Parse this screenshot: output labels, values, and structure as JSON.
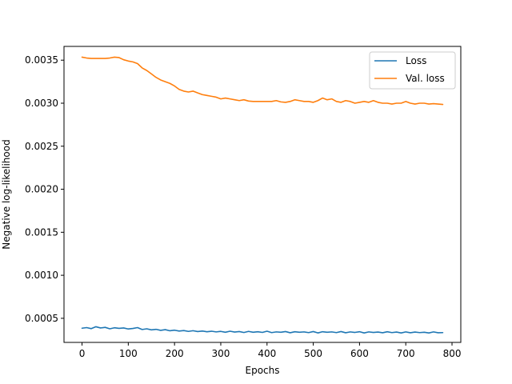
{
  "chart_data": {
    "type": "line",
    "title": "",
    "xlabel": "Epochs",
    "ylabel": "Negative log-likelihood",
    "xlim": [
      -39,
      819
    ],
    "ylim": [
      0.00022,
      0.00366
    ],
    "xticks": [
      0,
      100,
      200,
      300,
      400,
      500,
      600,
      700,
      800
    ],
    "xtick_labels": [
      "0",
      "100",
      "200",
      "300",
      "400",
      "500",
      "600",
      "700",
      "800"
    ],
    "yticks": [
      0.0005,
      0.001,
      0.0015,
      0.002,
      0.0025,
      0.003,
      0.0035
    ],
    "ytick_labels": [
      "0.0005",
      "0.0010",
      "0.0015",
      "0.0020",
      "0.0025",
      "0.0030",
      "0.0035"
    ],
    "grid": false,
    "legend_position": "top-right",
    "series": [
      {
        "name": "Loss",
        "color": "#1f77b4",
        "x": [
          0,
          10,
          20,
          30,
          40,
          50,
          60,
          70,
          80,
          90,
          100,
          110,
          120,
          130,
          140,
          150,
          160,
          170,
          180,
          190,
          200,
          210,
          220,
          230,
          240,
          250,
          260,
          270,
          280,
          290,
          300,
          310,
          320,
          330,
          340,
          350,
          360,
          370,
          380,
          390,
          400,
          410,
          420,
          430,
          440,
          450,
          460,
          470,
          480,
          490,
          500,
          510,
          520,
          530,
          540,
          550,
          560,
          570,
          580,
          590,
          600,
          610,
          620,
          630,
          640,
          650,
          660,
          670,
          680,
          690,
          700,
          710,
          720,
          730,
          740,
          750,
          760,
          770,
          780
        ],
        "values": [
          0.000385,
          0.000392,
          0.00038,
          0.000402,
          0.000388,
          0.000395,
          0.000378,
          0.00039,
          0.000383,
          0.000388,
          0.000376,
          0.000382,
          0.000392,
          0.00037,
          0.000378,
          0.000366,
          0.000372,
          0.00036,
          0.000368,
          0.000355,
          0.000362,
          0.000352,
          0.000358,
          0.000348,
          0.000356,
          0.000346,
          0.000352,
          0.000344,
          0.00035,
          0.000342,
          0.000348,
          0.000338,
          0.00035,
          0.00034,
          0.000346,
          0.000335,
          0.000348,
          0.000338,
          0.000344,
          0.000336,
          0.00035,
          0.000334,
          0.000342,
          0.000338,
          0.000346,
          0.000332,
          0.000344,
          0.000338,
          0.000342,
          0.000334,
          0.000346,
          0.00033,
          0.000344,
          0.000338,
          0.000342,
          0.000334,
          0.000346,
          0.000332,
          0.000342,
          0.000336,
          0.000344,
          0.00033,
          0.000342,
          0.000336,
          0.00034,
          0.000332,
          0.000344,
          0.000334,
          0.00034,
          0.00033,
          0.000342,
          0.000332,
          0.00034,
          0.000334,
          0.000338,
          0.00033,
          0.000342,
          0.000332,
          0.000334
        ]
      },
      {
        "name": "Val. loss",
        "color": "#ff7f0e",
        "x": [
          0,
          10,
          20,
          30,
          40,
          50,
          60,
          70,
          80,
          90,
          100,
          110,
          120,
          130,
          140,
          150,
          160,
          170,
          180,
          190,
          200,
          210,
          220,
          230,
          240,
          250,
          260,
          270,
          280,
          290,
          300,
          310,
          320,
          330,
          340,
          350,
          360,
          370,
          380,
          390,
          400,
          410,
          420,
          430,
          440,
          450,
          460,
          470,
          480,
          490,
          500,
          510,
          520,
          530,
          540,
          550,
          560,
          570,
          580,
          590,
          600,
          610,
          620,
          630,
          640,
          650,
          660,
          670,
          680,
          690,
          700,
          710,
          720,
          730,
          740,
          750,
          760,
          770,
          780
        ],
        "values": [
          0.003535,
          0.003525,
          0.00352,
          0.00352,
          0.00352,
          0.00352,
          0.003525,
          0.003535,
          0.00353,
          0.003505,
          0.00349,
          0.00348,
          0.00346,
          0.00341,
          0.00338,
          0.00334,
          0.0033,
          0.00327,
          0.00325,
          0.00323,
          0.0032,
          0.00316,
          0.00314,
          0.00313,
          0.00314,
          0.00312,
          0.0031,
          0.00309,
          0.00308,
          0.00307,
          0.00305,
          0.00306,
          0.00305,
          0.00304,
          0.00303,
          0.00304,
          0.003025,
          0.00302,
          0.00302,
          0.00302,
          0.00302,
          0.00302,
          0.00303,
          0.003015,
          0.00301,
          0.00302,
          0.00304,
          0.00303,
          0.00302,
          0.00302,
          0.00301,
          0.00303,
          0.00306,
          0.00304,
          0.00305,
          0.00302,
          0.00301,
          0.00303,
          0.00302,
          0.003,
          0.00301,
          0.00302,
          0.00301,
          0.00303,
          0.00301,
          0.003,
          0.003,
          0.00299,
          0.003,
          0.003,
          0.00302,
          0.003,
          0.00299,
          0.003,
          0.003,
          0.00299,
          0.002995,
          0.00299,
          0.002985
        ]
      }
    ]
  }
}
